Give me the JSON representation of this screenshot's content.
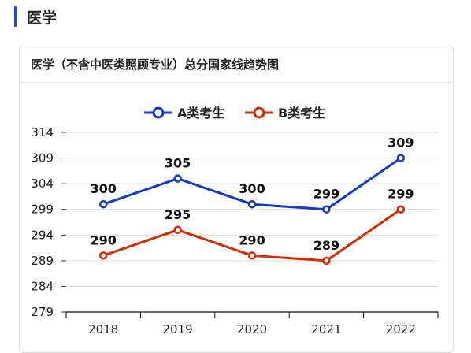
{
  "section": {
    "title": "医学"
  },
  "card": {
    "title": "医学（不含中医类照顾专业）总分国家线趋势图"
  },
  "colors": {
    "accent": "#1f4fd1",
    "series_a": "#1239c8",
    "series_b": "#d42a00"
  },
  "chart_data": {
    "type": "line",
    "title": "",
    "xlabel": "",
    "ylabel": "",
    "categories": [
      "2018",
      "2019",
      "2020",
      "2021",
      "2022"
    ],
    "y_ticks": [
      314,
      309,
      304,
      299,
      294,
      289,
      284,
      279
    ],
    "ylim": [
      279,
      314
    ],
    "grid": true,
    "legend": "top-center",
    "series": [
      {
        "name": "A类考生",
        "color": "#1239c8",
        "values": [
          300,
          305,
          300,
          299,
          309
        ]
      },
      {
        "name": "B类考生",
        "color": "#d42a00",
        "values": [
          290,
          295,
          290,
          289,
          299
        ]
      }
    ]
  }
}
